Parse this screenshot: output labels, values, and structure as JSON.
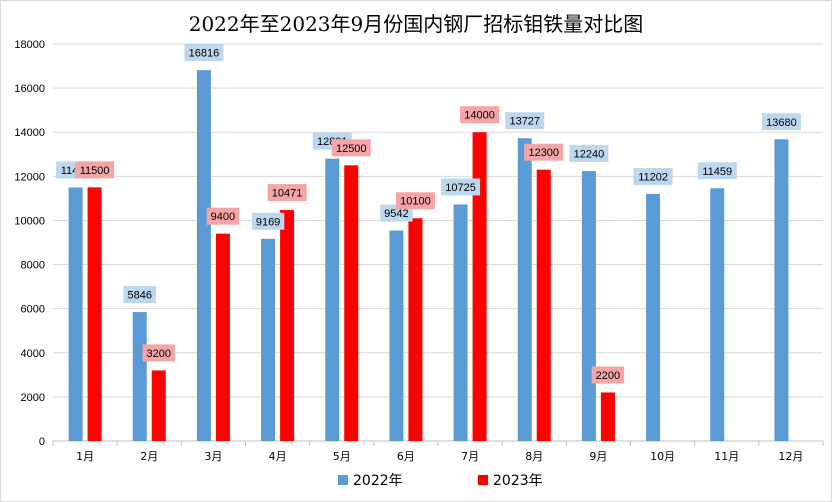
{
  "chart_data": {
    "type": "bar",
    "title": "2022年至2023年9月份国内钢厂招标钼铁量对比图",
    "categories": [
      "1月",
      "2月",
      "3月",
      "4月",
      "5月",
      "6月",
      "7月",
      "8月",
      "9月",
      "10月",
      "11月",
      "12月"
    ],
    "series": [
      {
        "name": "2022年",
        "color": "#5b9bd5",
        "label_bg": "#bdd7ee",
        "values": [
          11495,
          5846,
          16816,
          9169,
          12801,
          9542,
          10725,
          13727,
          12240,
          11202,
          11459,
          13680
        ]
      },
      {
        "name": "2023年",
        "color": "#ff0000",
        "label_bg": "#f4a6a6",
        "values": [
          11500,
          3200,
          9400,
          10471,
          12500,
          10100,
          14000,
          12300,
          2200,
          null,
          null,
          null
        ]
      }
    ],
    "ylim": [
      0,
      18000
    ],
    "yticks": [
      0,
      2000,
      4000,
      6000,
      8000,
      10000,
      12000,
      14000,
      16000,
      18000
    ],
    "grid": true,
    "legend_position": "bottom"
  }
}
